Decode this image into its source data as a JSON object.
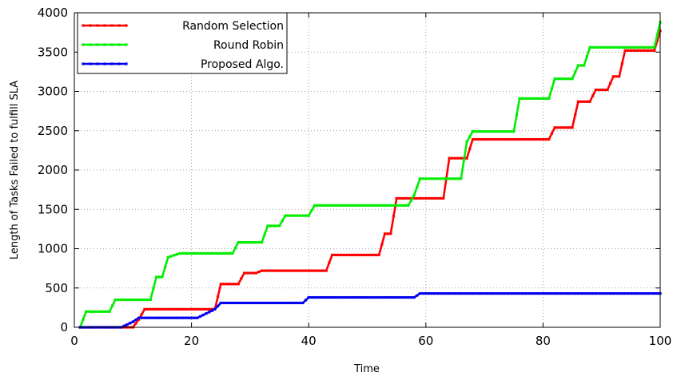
{
  "chart_data": {
    "type": "line",
    "title": "",
    "xlabel": "Time",
    "ylabel": "Length of Tasks Failed to fulfill SLA",
    "xlim": [
      0,
      100
    ],
    "ylim": [
      0,
      4000
    ],
    "xticks": [
      "0",
      "20",
      "40",
      "60",
      "80",
      "100"
    ],
    "yticks": [
      "0",
      "500",
      "1000",
      "1500",
      "2000",
      "2500",
      "3000",
      "3500",
      "4000"
    ],
    "grid": true,
    "legend_position": "top-left",
    "series": [
      {
        "name": "Random Selection",
        "color": "#ff0000",
        "x": [
          1,
          7,
          8,
          10,
          11,
          12,
          24,
          25,
          28,
          29,
          31,
          32,
          43,
          44,
          52,
          53,
          54,
          55,
          63,
          64,
          67,
          68,
          81,
          82,
          85,
          86,
          88,
          89,
          91,
          92,
          93,
          94,
          95,
          99,
          100
        ],
        "y": [
          0,
          0,
          0,
          0,
          100,
          230,
          230,
          550,
          550,
          690,
          690,
          720,
          720,
          920,
          920,
          1190,
          1190,
          1640,
          1640,
          2150,
          2150,
          2390,
          2390,
          2540,
          2540,
          2870,
          2870,
          3020,
          3020,
          3190,
          3190,
          3520,
          3520,
          3520,
          3770
        ]
      },
      {
        "name": "Round Robin",
        "color": "#00ee00",
        "x": [
          1,
          2,
          6,
          7,
          13,
          14,
          15,
          16,
          18,
          27,
          28,
          32,
          33,
          35,
          36,
          40,
          41,
          57,
          58,
          59,
          66,
          67,
          68,
          75,
          76,
          81,
          82,
          85,
          86,
          87,
          88,
          99,
          100
        ],
        "y": [
          0,
          200,
          200,
          350,
          350,
          640,
          640,
          890,
          940,
          940,
          1080,
          1080,
          1290,
          1290,
          1420,
          1420,
          1550,
          1550,
          1680,
          1890,
          1890,
          2360,
          2490,
          2490,
          2910,
          2910,
          3160,
          3160,
          3330,
          3330,
          3560,
          3560,
          3880
        ]
      },
      {
        "name": "Proposed Algo.",
        "color": "#0000ee",
        "x": [
          1,
          8,
          10,
          11,
          21,
          24,
          25,
          39,
          40,
          58,
          59,
          100
        ],
        "y": [
          0,
          0,
          70,
          120,
          120,
          230,
          310,
          310,
          380,
          380,
          430,
          430
        ]
      }
    ]
  }
}
